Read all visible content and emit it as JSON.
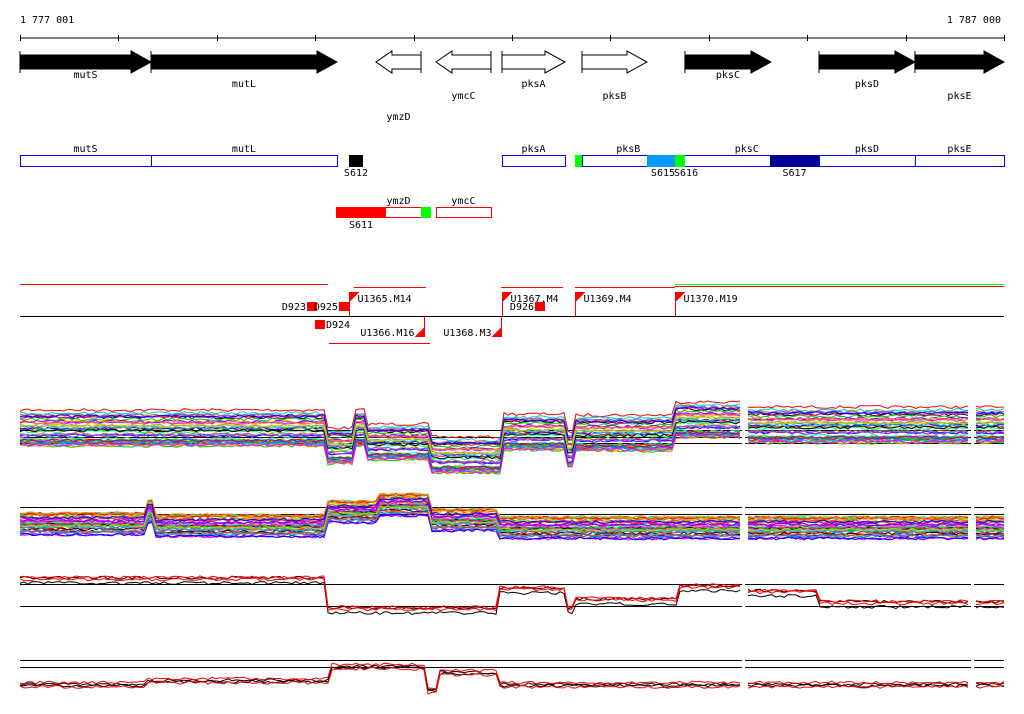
{
  "ruler": {
    "start_label": "1 777 001",
    "end_label": "1 787 000",
    "start_bp": 1777001,
    "end_bp": 1787000,
    "tick_step_bp": 1000
  },
  "genes": [
    {
      "name": "mutS",
      "start": 1777001,
      "end": 1778332,
      "strand": "+",
      "style": "filled"
    },
    {
      "name": "mutL",
      "start": 1778332,
      "end": 1780222,
      "strand": "+",
      "style": "filled"
    },
    {
      "name": "ymzD",
      "start": 1780618,
      "end": 1781076,
      "strand": "-",
      "style": "open"
    },
    {
      "name": "ymcC",
      "start": 1781228,
      "end": 1781787,
      "strand": "-",
      "style": "open"
    },
    {
      "name": "pksA",
      "start": 1781899,
      "end": 1782539,
      "strand": "+",
      "style": "open"
    },
    {
      "name": "pksB",
      "start": 1782712,
      "end": 1783372,
      "strand": "+",
      "style": "open"
    },
    {
      "name": "pksC",
      "start": 1783758,
      "end": 1784632,
      "strand": "+",
      "style": "filled"
    },
    {
      "name": "pksD",
      "start": 1785120,
      "end": 1786095,
      "strand": "+",
      "style": "filled"
    },
    {
      "name": "pksE",
      "start": 1786095,
      "end": 1787000,
      "strand": "+",
      "style": "filled"
    }
  ],
  "forward_segments": {
    "boxes": [
      {
        "name": "mutS",
        "start": 1777001,
        "end": 1778332
      },
      {
        "name": "mutL",
        "start": 1778332,
        "end": 1780222
      },
      {
        "name": "pksA",
        "start": 1781899,
        "end": 1782539
      },
      {
        "name": "pksB",
        "start": 1782712,
        "end": 1783652
      },
      {
        "name": "pksC",
        "start": 1783652,
        "end": 1785120
      },
      {
        "name": "pksD",
        "start": 1785120,
        "end": 1786095
      },
      {
        "name": "pksE",
        "start": 1786095,
        "end": 1787000
      }
    ],
    "blocks": [
      {
        "label": "S612",
        "start": 1780344,
        "end": 1780486,
        "color": "#000000"
      },
      {
        "label": "",
        "start": 1782641,
        "end": 1782712,
        "color": "#00ff00"
      },
      {
        "label": "S615",
        "start": 1783372,
        "end": 1783657,
        "color": "#0099ff"
      },
      {
        "label": "S616",
        "start": 1783657,
        "end": 1783758,
        "color": "#00ff00"
      },
      {
        "label": "S617",
        "start": 1784622,
        "end": 1785120,
        "color": "#000099"
      }
    ]
  },
  "reverse_segments": {
    "boxes": [
      {
        "name": "ymzD",
        "start": 1780212,
        "end": 1781076
      },
      {
        "name": "ymcC",
        "start": 1781228,
        "end": 1781787
      }
    ],
    "blocks": [
      {
        "label": "S611",
        "start": 1780212,
        "end": 1780720,
        "color": "#ff0000"
      },
      {
        "label": "",
        "start": 1781076,
        "end": 1781177,
        "color": "#00ff00"
      }
    ]
  },
  "transcripts": {
    "upshifts": [
      {
        "label": "U1365.M14",
        "pos": 1780344,
        "strand": "+"
      },
      {
        "label": "U1366.M16",
        "pos": 1781107,
        "strand": "-"
      },
      {
        "label": "U1367.M4",
        "pos": 1781899,
        "strand": "+"
      },
      {
        "label": "U1368.M3",
        "pos": 1781888,
        "strand": "-"
      },
      {
        "label": "U1369.M4",
        "pos": 1782641,
        "strand": "+"
      },
      {
        "label": "U1370.M19",
        "pos": 1783657,
        "strand": "+"
      }
    ],
    "downshifts": [
      {
        "label": "D923",
        "pos": 1780019,
        "strand": "+"
      },
      {
        "label": "D925",
        "pos": 1780344,
        "strand": "+"
      },
      {
        "label": "D924",
        "pos": 1780100,
        "strand": "-"
      },
      {
        "label": "D926",
        "pos": 1782336,
        "strand": "+"
      }
    ]
  },
  "colors": {
    "gene_box": "#0000ff",
    "reverse_box": "#ff0000",
    "transcript": "#ff0000",
    "transcript_alt": "#00ff00"
  }
}
